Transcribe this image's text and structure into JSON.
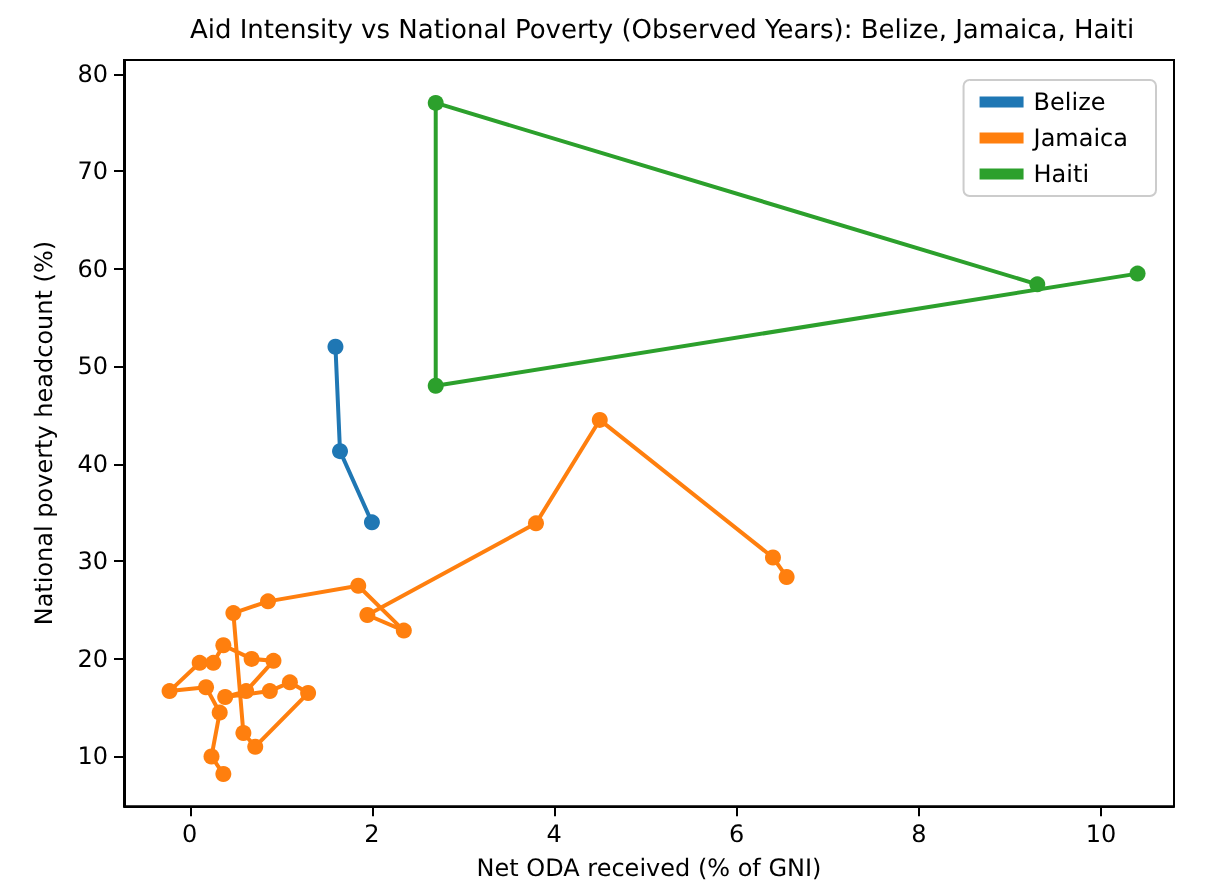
{
  "chart_data": {
    "type": "line",
    "title": "Aid Intensity vs National Poverty (Observed Years): Belize, Jamaica, Haiti",
    "xlabel": "Net ODA received (% of GNI)",
    "ylabel": "National poverty headcount (%)",
    "xlim": [
      -0.72,
      10.8
    ],
    "xticks": [
      0,
      2,
      4,
      6,
      8,
      10
    ],
    "ylim": [
      4.9,
      81.4
    ],
    "yticks": [
      10,
      20,
      30,
      40,
      50,
      60,
      70,
      80
    ],
    "grid": false,
    "legend": "top right",
    "marker": "circle",
    "line_style": "solid",
    "series": [
      {
        "name": "Belize",
        "color": "#1f77b4",
        "x": [
          1.6,
          1.65,
          2.0
        ],
        "values": [
          52,
          41.3,
          34
        ]
      },
      {
        "name": "Jamaica",
        "color": "#ff7f0e",
        "x": [
          0.37,
          0.24,
          0.33,
          0.18,
          -0.22,
          0.11,
          0.26,
          0.37,
          0.68,
          0.92,
          0.62,
          0.39,
          0.88,
          1.1,
          1.3,
          0.72,
          0.59,
          0.48,
          0.86,
          1.85,
          2.35,
          1.95,
          3.8,
          4.5,
          6.4,
          6.55
        ],
        "values": [
          8.2,
          10,
          14.5,
          17.1,
          16.7,
          19.6,
          19.6,
          21.4,
          20,
          19.8,
          16.7,
          16.1,
          16.7,
          17.6,
          16.5,
          11,
          12.4,
          24.7,
          25.9,
          27.5,
          22.9,
          24.5,
          33.9,
          44.5,
          30.4,
          28.4
        ]
      },
      {
        "name": "Haiti",
        "color": "#2ca02c",
        "x": [
          9.3,
          2.7,
          2.7,
          10.4
        ],
        "values": [
          58.4,
          77,
          48,
          59.5
        ]
      }
    ]
  }
}
